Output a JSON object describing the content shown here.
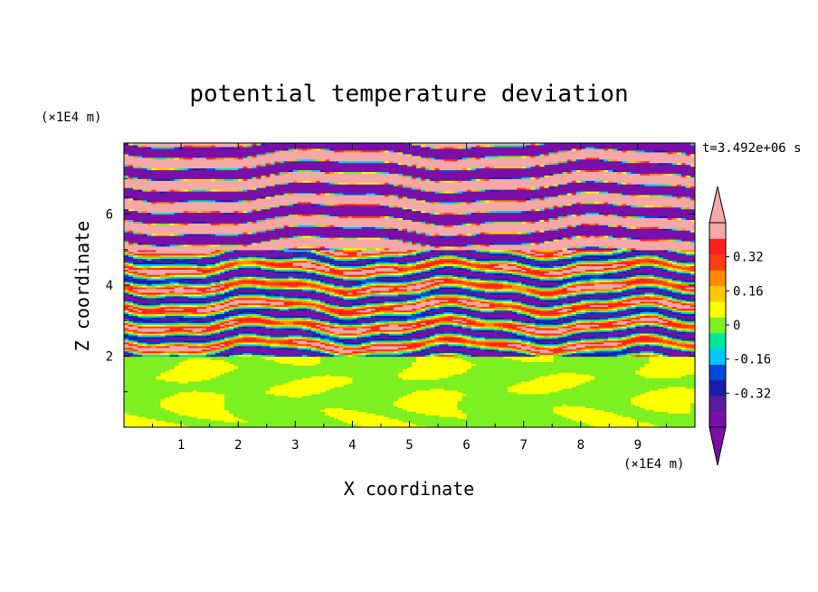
{
  "chart_data": {
    "type": "heatmap",
    "title": "potential temperature deviation",
    "xlabel": "X coordinate",
    "ylabel": "Z coordinate",
    "x_unit": "(×1E4 m)",
    "y_unit": "(×1E4 m)",
    "time_label": "t=3.492e+06 s",
    "xlim": [
      0,
      10
    ],
    "ylim": [
      0,
      8
    ],
    "x_ticks": [
      1,
      2,
      3,
      4,
      5,
      6,
      7,
      8,
      9
    ],
    "y_ticks": [
      2,
      4,
      6
    ],
    "colorbar": {
      "levels": [
        -0.48,
        -0.4,
        -0.32,
        -0.24,
        -0.16,
        -0.08,
        0,
        0.08,
        0.16,
        0.24,
        0.32,
        0.4,
        0.48
      ],
      "tick_labels": [
        "0.32",
        "0.16",
        "0",
        "-0.16",
        "-0.32"
      ],
      "tick_values": [
        0.32,
        0.16,
        0,
        -0.16,
        -0.32
      ],
      "colors": [
        "#7b0fa8",
        "#5a1d9e",
        "#1c1ca8",
        "#0048d8",
        "#00c8ff",
        "#00e89c",
        "#7cf020",
        "#ffff00",
        "#ffc800",
        "#ff8c00",
        "#ff3c14",
        "#ff2020",
        "#f4a8a8"
      ],
      "over_color": "#f4a8a8",
      "under_color": "#7b0fa8"
    },
    "layers": [
      {
        "z_range": [
          0,
          2.0
        ],
        "dominant": [
          "#00e89c",
          "#7cf020"
        ],
        "description_value": "near 0"
      },
      {
        "z_range": [
          2.0,
          5.0
        ],
        "dominant": "mixed",
        "description_value": "-0.48 to 0.48"
      },
      {
        "z_range": [
          5.0,
          8.0
        ],
        "dominant": [
          "#f4a8a8",
          "#7b0fa8"
        ],
        "description_value": "alternating ±0.48"
      }
    ]
  }
}
